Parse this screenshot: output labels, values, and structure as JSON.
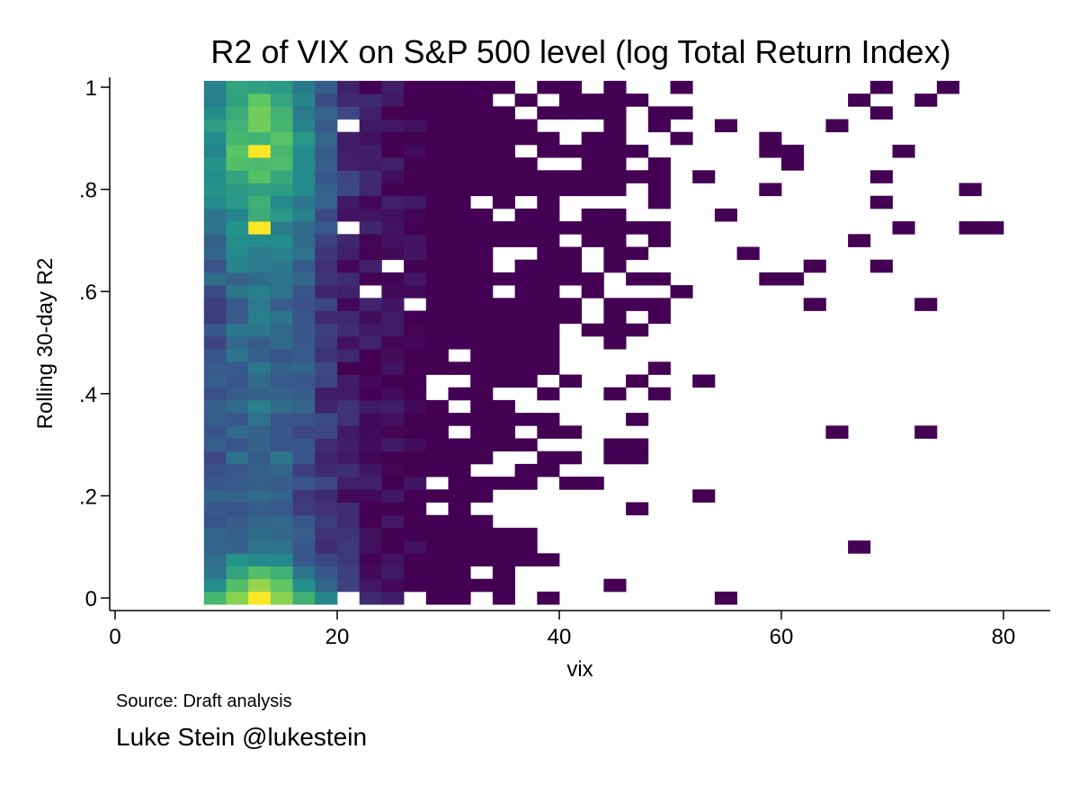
{
  "chart_data": {
    "type": "heatmap",
    "title": "R2 of VIX on S&P 500 level (log Total Return Index)",
    "xlabel": "vix",
    "ylabel": "Rolling 30-day R2",
    "xlim": [
      0,
      84
    ],
    "ylim": [
      -0.02,
      1.02
    ],
    "xticks": [
      0,
      20,
      40,
      60,
      80
    ],
    "xtick_labels": [
      "0",
      "20",
      "40",
      "60",
      "80"
    ],
    "yticks": [
      0,
      0.2,
      0.4,
      0.6,
      0.8,
      1
    ],
    "ytick_labels": [
      "0",
      ".2",
      ".4",
      ".6",
      ".8",
      "1"
    ],
    "grid": false,
    "legend": "none",
    "colormap": "viridis",
    "colormap_stops": [
      "#440154",
      "#3b528b",
      "#21918c",
      "#5ec962",
      "#fde725"
    ],
    "x_bin_width": 2,
    "y_bin_width": 0.025,
    "notes": {
      "source": "Source: Draft analysis",
      "credit": "Luke Stein @lukestein"
    }
  }
}
